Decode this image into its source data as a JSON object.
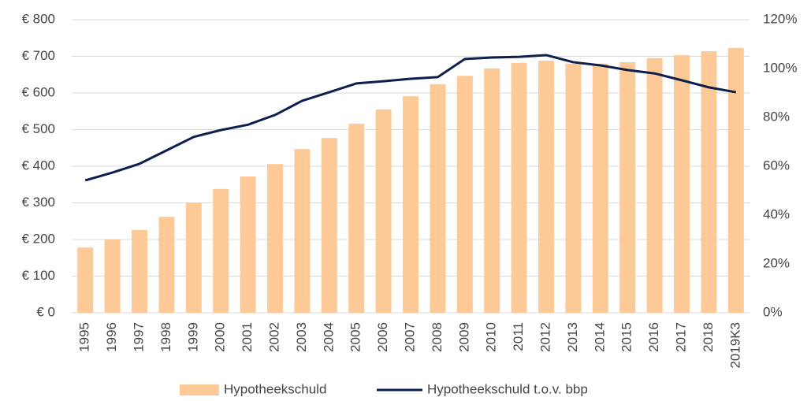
{
  "chart_data": {
    "type": "bar",
    "categories": [
      "1995",
      "1996",
      "1997",
      "1998",
      "1999",
      "2000",
      "2001",
      "2002",
      "2003",
      "2004",
      "2005",
      "2006",
      "2007",
      "2008",
      "2009",
      "2010",
      "2011",
      "2012",
      "2013",
      "2014",
      "2015",
      "2016",
      "2017",
      "2018",
      "2019K3"
    ],
    "series": [
      {
        "name": "Hypotheekschuld",
        "type": "bar",
        "color": "#fdca97",
        "axis": "y",
        "values": [
          178,
          200,
          226,
          262,
          301,
          338,
          372,
          406,
          447,
          477,
          516,
          555,
          591,
          624,
          647,
          667,
          682,
          688,
          680,
          680,
          684,
          695,
          703,
          714,
          723
        ]
      },
      {
        "name": "Hypotheekschuld t.o.v. bbp",
        "type": "line",
        "color": "#0e1f4d",
        "axis": "y2",
        "values": [
          54.2,
          57.4,
          61,
          66.5,
          72,
          74.8,
          77,
          81,
          86.8,
          90.3,
          93.9,
          94.8,
          95.8,
          96.5,
          103.9,
          104.5,
          104.8,
          105.5,
          102.6,
          101.3,
          99.4,
          98,
          95.2,
          92.3,
          90.3
        ]
      }
    ],
    "ylim": [
      0,
      800
    ],
    "yticks": [
      {
        "value": 0,
        "label": "€ 0"
      },
      {
        "value": 100,
        "label": "€ 100"
      },
      {
        "value": 200,
        "label": "€ 200"
      },
      {
        "value": 300,
        "label": "€ 300"
      },
      {
        "value": 400,
        "label": "€ 400"
      },
      {
        "value": 500,
        "label": "€ 500"
      },
      {
        "value": 600,
        "label": "€ 600"
      },
      {
        "value": 700,
        "label": "€ 700"
      },
      {
        "value": 800,
        "label": "€ 800"
      }
    ],
    "y2lim": [
      0,
      120
    ],
    "y2ticks": [
      {
        "value": 0,
        "label": "0%"
      },
      {
        "value": 20,
        "label": "20%"
      },
      {
        "value": 40,
        "label": "40%"
      },
      {
        "value": 60,
        "label": "60%"
      },
      {
        "value": 80,
        "label": "80%"
      },
      {
        "value": 100,
        "label": "100%"
      },
      {
        "value": 120,
        "label": "120%"
      }
    ],
    "grid": true,
    "legend": "bottom"
  }
}
